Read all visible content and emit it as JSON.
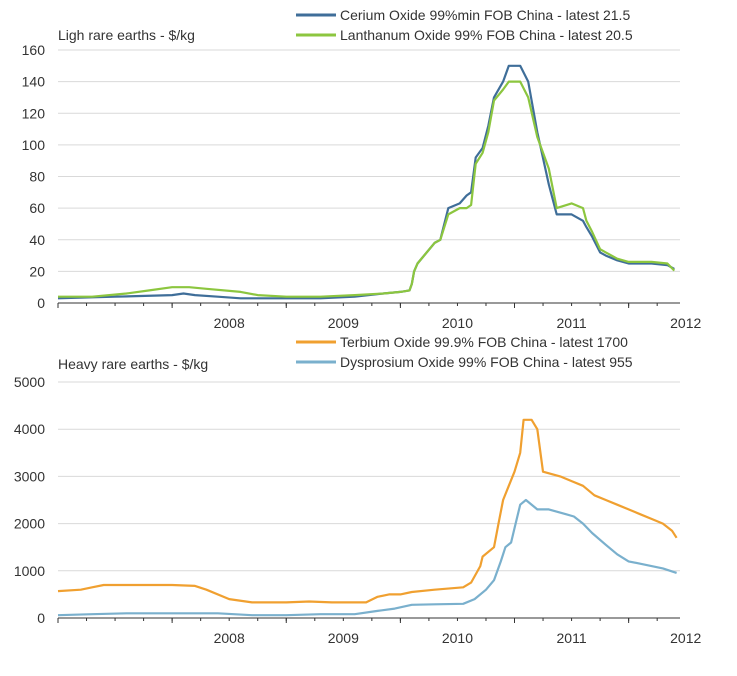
{
  "chart_data": [
    {
      "type": "line",
      "title": "Ligh rare earths - $/kg",
      "ylim": [
        0,
        160
      ],
      "yticks": [
        0,
        20,
        40,
        60,
        80,
        100,
        120,
        140,
        160
      ],
      "xlim": [
        2007.0,
        2012.45
      ],
      "xticks": [
        2008,
        2009,
        2010,
        2011,
        2012
      ],
      "grid": true,
      "legend": "top-right",
      "series": [
        {
          "name": "Cerium Oxide 99%min FOB China - latest 21.5",
          "color": "#3f6e99",
          "x": [
            2007.0,
            2007.5,
            2008.0,
            2008.1,
            2008.2,
            2008.4,
            2008.6,
            2009.0,
            2009.3,
            2009.6,
            2009.85,
            2010.0,
            2010.08,
            2010.1,
            2010.12,
            2010.15,
            2010.3,
            2010.35,
            2010.42,
            2010.52,
            2010.58,
            2010.62,
            2010.66,
            2010.72,
            2010.77,
            2010.82,
            2010.9,
            2010.95,
            2011.05,
            2011.12,
            2011.2,
            2011.3,
            2011.37,
            2011.5,
            2011.6,
            2011.63,
            2011.68,
            2011.75,
            2011.8,
            2011.9,
            2012.0,
            2012.2,
            2012.34,
            2012.4
          ],
          "y": [
            3,
            4,
            5,
            6,
            5,
            4,
            3,
            3,
            3,
            4,
            6,
            7,
            8,
            12,
            20,
            25,
            38,
            40,
            60,
            63,
            68,
            70,
            92,
            98,
            112,
            130,
            140,
            150,
            150,
            140,
            108,
            75,
            56,
            56,
            52,
            48,
            42,
            32,
            30,
            27,
            25,
            25,
            24,
            21.5
          ]
        },
        {
          "name": "Lanthanum Oxide 99% FOB China - latest 20.5",
          "color": "#8cc63f",
          "x": [
            2007.0,
            2007.3,
            2007.6,
            2007.8,
            2008.0,
            2008.15,
            2008.3,
            2008.6,
            2008.75,
            2009.0,
            2009.3,
            2009.6,
            2009.85,
            2010.0,
            2010.08,
            2010.1,
            2010.12,
            2010.15,
            2010.3,
            2010.35,
            2010.42,
            2010.52,
            2010.58,
            2010.62,
            2010.66,
            2010.72,
            2010.77,
            2010.82,
            2010.9,
            2010.95,
            2011.05,
            2011.12,
            2011.2,
            2011.3,
            2011.37,
            2011.5,
            2011.6,
            2011.63,
            2011.68,
            2011.75,
            2011.8,
            2011.9,
            2012.0,
            2012.2,
            2012.34,
            2012.4
          ],
          "y": [
            4,
            4,
            6,
            8,
            10,
            10,
            9,
            7,
            5,
            4,
            4,
            5,
            6,
            7,
            8,
            12,
            20,
            25,
            38,
            40,
            56,
            60,
            60,
            62,
            88,
            95,
            108,
            128,
            135,
            140,
            140,
            130,
            105,
            85,
            60,
            63,
            60,
            52,
            45,
            34,
            32,
            28,
            26,
            26,
            25,
            20.5
          ]
        }
      ]
    },
    {
      "type": "line",
      "title": "Heavy rare earths - $/kg",
      "ylim": [
        0,
        5000
      ],
      "yticks": [
        0,
        1000,
        2000,
        3000,
        4000,
        5000
      ],
      "xlim": [
        2007.0,
        2012.45
      ],
      "xticks": [
        2008,
        2009,
        2010,
        2011,
        2012
      ],
      "grid": true,
      "legend": "top-right",
      "series": [
        {
          "name": "Terbium Oxide 99.9% FOB China - latest 1700",
          "color": "#f0a030",
          "x": [
            2007.0,
            2007.2,
            2007.3,
            2007.4,
            2007.6,
            2008.0,
            2008.2,
            2008.3,
            2008.5,
            2008.7,
            2009.0,
            2009.2,
            2009.4,
            2009.7,
            2009.8,
            2009.9,
            2010.0,
            2010.1,
            2010.3,
            2010.55,
            2010.62,
            2010.7,
            2010.72,
            2010.82,
            2010.86,
            2010.9,
            2010.95,
            2011.0,
            2011.05,
            2011.08,
            2011.15,
            2011.2,
            2011.25,
            2011.4,
            2011.5,
            2011.6,
            2011.7,
            2011.8,
            2011.9,
            2012.0,
            2012.1,
            2012.2,
            2012.3,
            2012.38,
            2012.42
          ],
          "y": [
            570,
            600,
            650,
            700,
            700,
            700,
            680,
            600,
            400,
            330,
            330,
            350,
            330,
            330,
            450,
            500,
            500,
            550,
            600,
            650,
            750,
            1100,
            1300,
            1500,
            2000,
            2500,
            2800,
            3100,
            3500,
            4200,
            4200,
            4000,
            3100,
            3000,
            2900,
            2800,
            2600,
            2500,
            2400,
            2300,
            2200,
            2100,
            2000,
            1850,
            1700
          ]
        },
        {
          "name": "Dysprosium Oxide 99% FOB China - latest 955",
          "color": "#7ab0cd",
          "x": [
            2007.0,
            2007.3,
            2007.6,
            2008.0,
            2008.4,
            2008.7,
            2009.0,
            2009.3,
            2009.6,
            2009.8,
            2009.95,
            2010.1,
            2010.3,
            2010.55,
            2010.65,
            2010.75,
            2010.82,
            2010.88,
            2010.92,
            2010.97,
            2011.0,
            2011.05,
            2011.1,
            2011.2,
            2011.3,
            2011.45,
            2011.52,
            2011.6,
            2011.68,
            2011.8,
            2011.9,
            2012.0,
            2012.1,
            2012.2,
            2012.3,
            2012.42
          ],
          "y": [
            60,
            80,
            100,
            100,
            100,
            60,
            60,
            80,
            80,
            150,
            200,
            280,
            290,
            300,
            400,
            600,
            800,
            1200,
            1500,
            1600,
            1900,
            2400,
            2500,
            2300,
            2300,
            2200,
            2150,
            2000,
            1800,
            1550,
            1350,
            1200,
            1150,
            1100,
            1050,
            955
          ]
        }
      ]
    }
  ]
}
